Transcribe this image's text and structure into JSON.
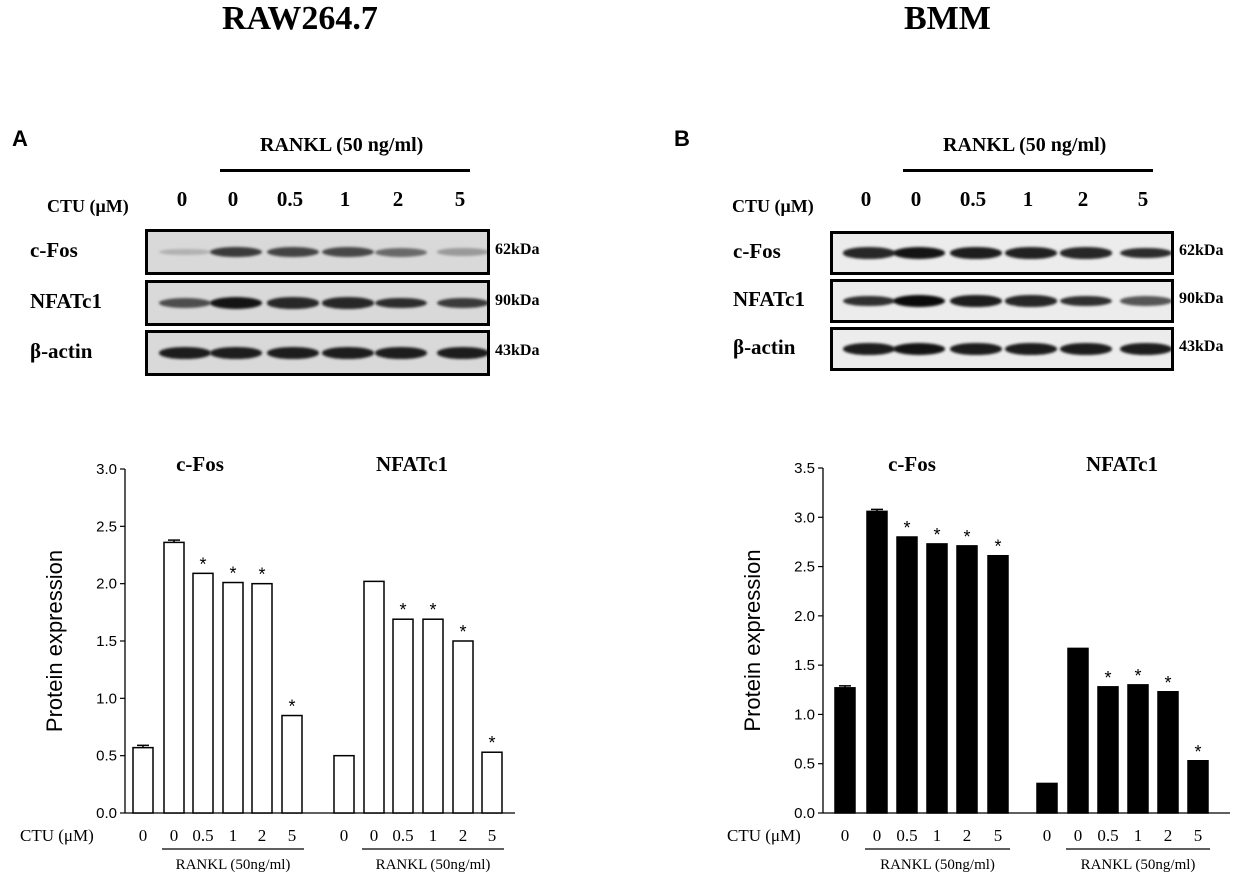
{
  "panels": [
    {
      "id": "A",
      "header": "RAW264.7",
      "letter": "A",
      "rankl_label": "RANKL (50 ng/ml)",
      "ctu_label": "CTU (μM)",
      "concentrations": [
        "0",
        "0",
        "0.5",
        "1",
        "2",
        "5"
      ],
      "blots": [
        {
          "name": "c-Fos",
          "kda": "62kDa",
          "intensity": [
            0.12,
            0.75,
            0.7,
            0.68,
            0.5,
            0.25
          ]
        },
        {
          "name": "NFATc1",
          "kda": "90kDa",
          "intensity": [
            0.65,
            0.95,
            0.85,
            0.85,
            0.82,
            0.75
          ]
        },
        {
          "name": "β-actin",
          "kda": "43kDa",
          "intensity": [
            0.9,
            0.9,
            0.9,
            0.9,
            0.9,
            0.9
          ]
        }
      ]
    },
    {
      "id": "B",
      "header": "BMM",
      "letter": "B",
      "rankl_label": "RANKL (50 ng/ml)",
      "ctu_label": "CTU (μM)",
      "concentrations": [
        "0",
        "0",
        "0.5",
        "1",
        "2",
        "5"
      ],
      "blots": [
        {
          "name": "c-Fos",
          "kda": "62kDa",
          "intensity": [
            0.85,
            0.95,
            0.9,
            0.88,
            0.85,
            0.82
          ]
        },
        {
          "name": "NFATc1",
          "kda": "90kDa",
          "intensity": [
            0.8,
            1.0,
            0.9,
            0.85,
            0.8,
            0.6
          ]
        },
        {
          "name": "β-actin",
          "kda": "43kDa",
          "intensity": [
            0.9,
            0.95,
            0.9,
            0.9,
            0.9,
            0.9
          ]
        }
      ]
    }
  ],
  "chart_data": [
    {
      "type": "bar",
      "panel": "A",
      "fill": "#ffffff",
      "ylabel": "Protein expression",
      "ylim": [
        0,
        3.0
      ],
      "yticks": [
        "0.0",
        "0.5",
        "1.0",
        "1.5",
        "2.0",
        "2.5",
        "3.0"
      ],
      "x_prefix": "CTU (μM)",
      "groups": [
        {
          "name": "c-Fos",
          "categories": [
            "0",
            "0",
            "0.5",
            "1",
            "2",
            "5"
          ],
          "values": [
            0.57,
            2.36,
            2.09,
            2.01,
            2.0,
            0.85
          ],
          "errors": [
            0.02,
            0.02,
            0.0,
            0.0,
            0.0,
            0.0
          ],
          "significant": [
            false,
            false,
            true,
            true,
            true,
            true
          ],
          "rankl_label": "RANKL (50ng/ml)"
        },
        {
          "name": "NFATc1",
          "categories": [
            "0",
            "0",
            "0.5",
            "1",
            "2",
            "5"
          ],
          "values": [
            0.5,
            2.02,
            1.69,
            1.69,
            1.5,
            0.53
          ],
          "errors": [
            0.0,
            0.0,
            0.0,
            0.0,
            0.0,
            0.0
          ],
          "significant": [
            false,
            false,
            true,
            true,
            true,
            true
          ],
          "rankl_label": "RANKL (50ng/ml)"
        }
      ],
      "significance_mark": "*"
    },
    {
      "type": "bar",
      "panel": "B",
      "fill": "#000000",
      "ylabel": "Protein expression",
      "ylim": [
        0,
        3.5
      ],
      "yticks": [
        "0.0",
        "0.5",
        "1.0",
        "1.5",
        "2.0",
        "2.5",
        "3.0",
        "3.5"
      ],
      "x_prefix": "CTU (μM)",
      "groups": [
        {
          "name": "c-Fos",
          "categories": [
            "0",
            "0",
            "0.5",
            "1",
            "2",
            "5"
          ],
          "values": [
            1.27,
            3.06,
            2.8,
            2.73,
            2.71,
            2.61
          ],
          "errors": [
            0.02,
            0.02,
            0.0,
            0.0,
            0.0,
            0.0
          ],
          "significant": [
            false,
            false,
            true,
            true,
            true,
            true
          ],
          "rankl_label": "RANKL (50ng/ml)"
        },
        {
          "name": "NFATc1",
          "categories": [
            "0",
            "0",
            "0.5",
            "1",
            "2",
            "5"
          ],
          "values": [
            0.3,
            1.67,
            1.28,
            1.3,
            1.23,
            0.53
          ],
          "errors": [
            0.0,
            0.0,
            0.0,
            0.0,
            0.0,
            0.0
          ],
          "significant": [
            false,
            false,
            true,
            true,
            true,
            true
          ],
          "rankl_label": "RANKL (50ng/ml)"
        }
      ],
      "significance_mark": "*"
    }
  ]
}
